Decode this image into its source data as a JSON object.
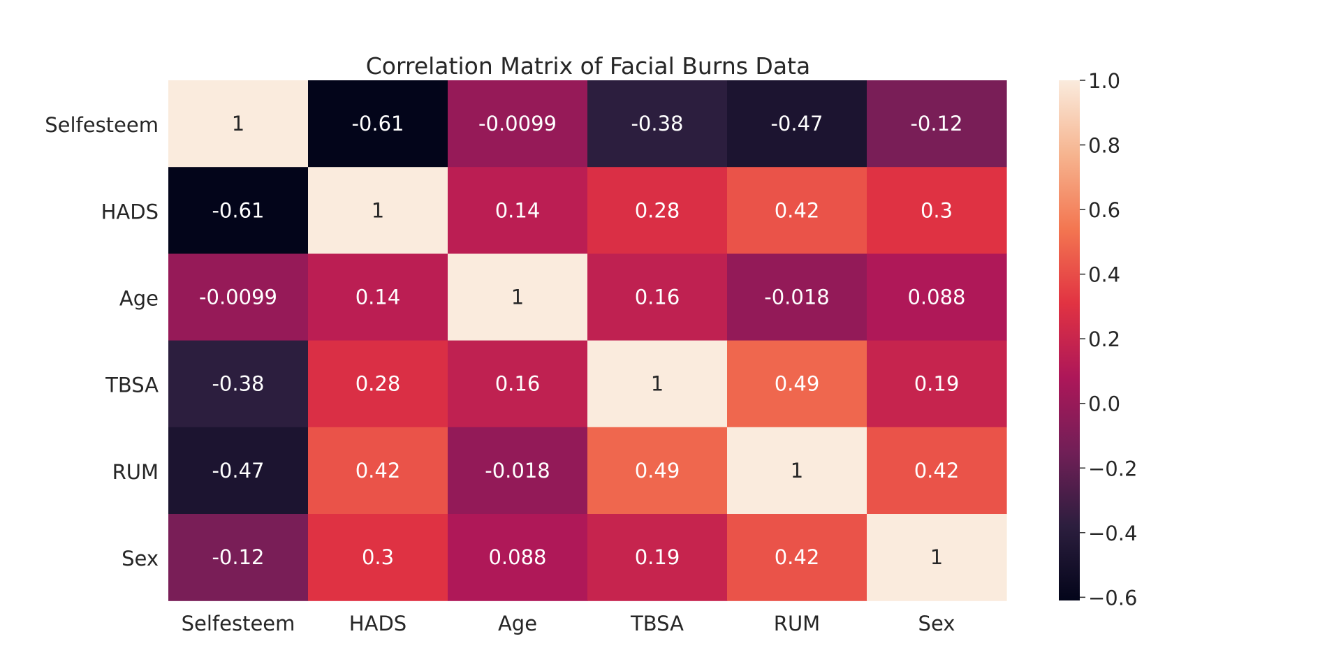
{
  "chart_data": {
    "type": "heatmap",
    "title": "Correlation Matrix of Facial Burns Data",
    "xlabel": "",
    "ylabel": "",
    "x_categories": [
      "Selfesteem",
      "HADS",
      "Age",
      "TBSA",
      "RUM",
      "Sex"
    ],
    "y_categories": [
      "Selfesteem",
      "HADS",
      "Age",
      "TBSA",
      "RUM",
      "Sex"
    ],
    "values": [
      [
        1,
        -0.61,
        -0.0099,
        -0.38,
        -0.47,
        -0.12
      ],
      [
        -0.61,
        1,
        0.14,
        0.28,
        0.42,
        0.3
      ],
      [
        -0.0099,
        0.14,
        1,
        0.16,
        -0.018,
        0.088
      ],
      [
        -0.38,
        0.28,
        0.16,
        1,
        0.49,
        0.19
      ],
      [
        -0.47,
        0.42,
        -0.018,
        0.49,
        1,
        0.42
      ],
      [
        -0.12,
        0.3,
        0.088,
        0.19,
        0.42,
        1
      ]
    ],
    "annotations": [
      [
        "1",
        "-0.61",
        "-0.0099",
        "-0.38",
        "-0.47",
        "-0.12"
      ],
      [
        "-0.61",
        "1",
        "0.14",
        "0.28",
        "0.42",
        "0.3"
      ],
      [
        "-0.0099",
        "0.14",
        "1",
        "0.16",
        "-0.018",
        "0.088"
      ],
      [
        "-0.38",
        "0.28",
        "0.16",
        "1",
        "0.49",
        "0.19"
      ],
      [
        "-0.47",
        "0.42",
        "-0.018",
        "0.49",
        "1",
        "0.42"
      ],
      [
        "-0.12",
        "0.3",
        "0.088",
        "0.19",
        "0.42",
        "1"
      ]
    ],
    "colorbar": {
      "vmin": -0.61,
      "vmax": 1.0,
      "ticks": [
        1.0,
        0.8,
        0.6,
        0.4,
        0.2,
        0.0,
        -0.2,
        -0.4,
        -0.6
      ],
      "tick_labels": [
        "1.0",
        "0.8",
        "0.6",
        "0.4",
        "0.2",
        "0.0",
        "−0.2",
        "−0.4",
        "−0.6"
      ]
    },
    "colormap": "rocket",
    "colormap_stops": [
      "#03051a",
      "#2c1e3e",
      "#711f57",
      "#ad1759",
      "#e13342",
      "#f37651",
      "#f6b48f",
      "#faebdd"
    ],
    "grid": false,
    "legend": "none"
  }
}
